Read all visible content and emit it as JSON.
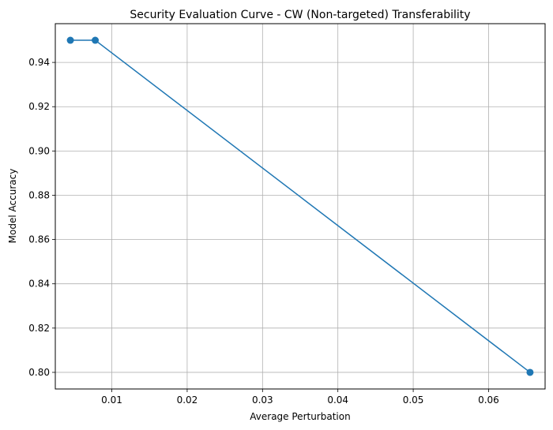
{
  "chart_data": {
    "type": "line",
    "title": "Security Evaluation Curve - CW (Non-targeted) Transferability",
    "xlabel": "Average Perturbation",
    "ylabel": "Model Accuracy",
    "xlim": [
      0.0025,
      0.0675
    ],
    "ylim": [
      0.7925,
      0.9575
    ],
    "xticks": [
      0.01,
      0.02,
      0.03,
      0.04,
      0.05,
      0.06
    ],
    "xtick_labels": [
      "0.01",
      "0.02",
      "0.03",
      "0.04",
      "0.05",
      "0.06"
    ],
    "yticks": [
      0.8,
      0.82,
      0.84,
      0.86,
      0.88,
      0.9,
      0.92,
      0.94
    ],
    "ytick_labels": [
      "0.80",
      "0.82",
      "0.84",
      "0.86",
      "0.88",
      "0.90",
      "0.92",
      "0.94"
    ],
    "grid": true,
    "series": [
      {
        "x": [
          0.0045,
          0.0078,
          0.0655
        ],
        "y": [
          0.95,
          0.95,
          0.8
        ],
        "color": "#1f77b4",
        "marker": "circle"
      }
    ]
  }
}
